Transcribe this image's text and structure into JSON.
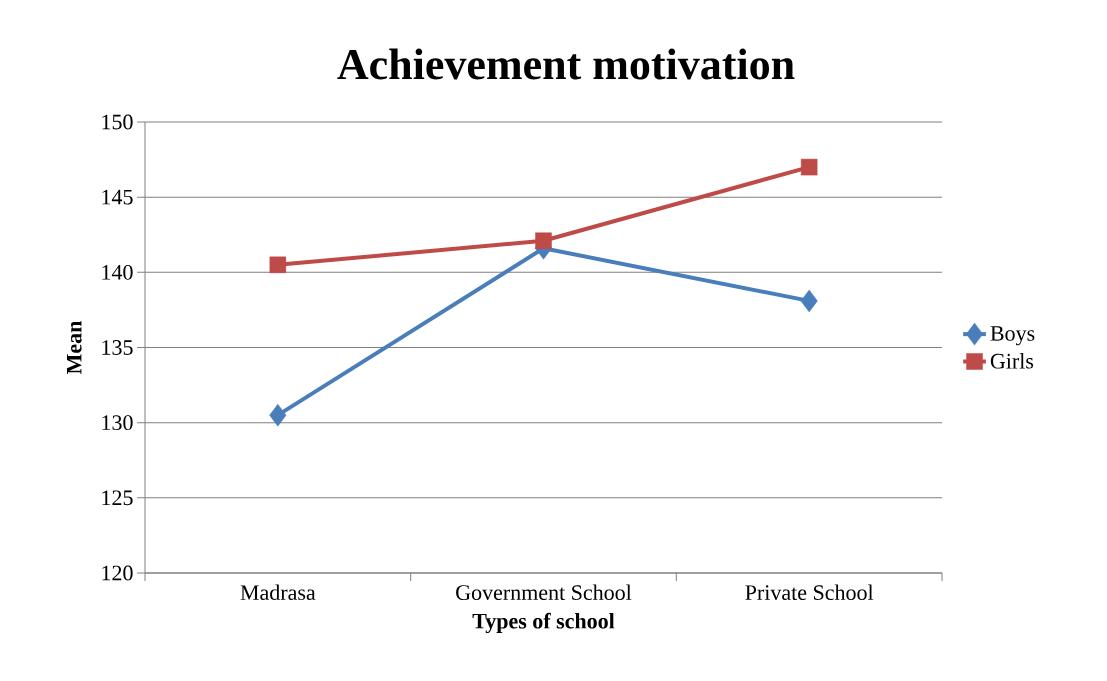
{
  "chart_data": {
    "type": "line",
    "title": "Achievement motivation",
    "xlabel": "Types of school",
    "ylabel": "Mean",
    "categories": [
      "Madrasa",
      "Government School",
      "Private School"
    ],
    "series": [
      {
        "name": "Boys",
        "color": "#4a7ebb",
        "marker": "diamond",
        "values": [
          130.5,
          141.6,
          138.1
        ]
      },
      {
        "name": "Girls",
        "color": "#be4b48",
        "marker": "square",
        "values": [
          140.5,
          142.1,
          147.0
        ]
      }
    ],
    "ylim": [
      120,
      150
    ],
    "yticks": [
      120,
      125,
      130,
      135,
      140,
      145,
      150
    ],
    "grid": "y",
    "legend": "right",
    "line_style": "solid"
  }
}
